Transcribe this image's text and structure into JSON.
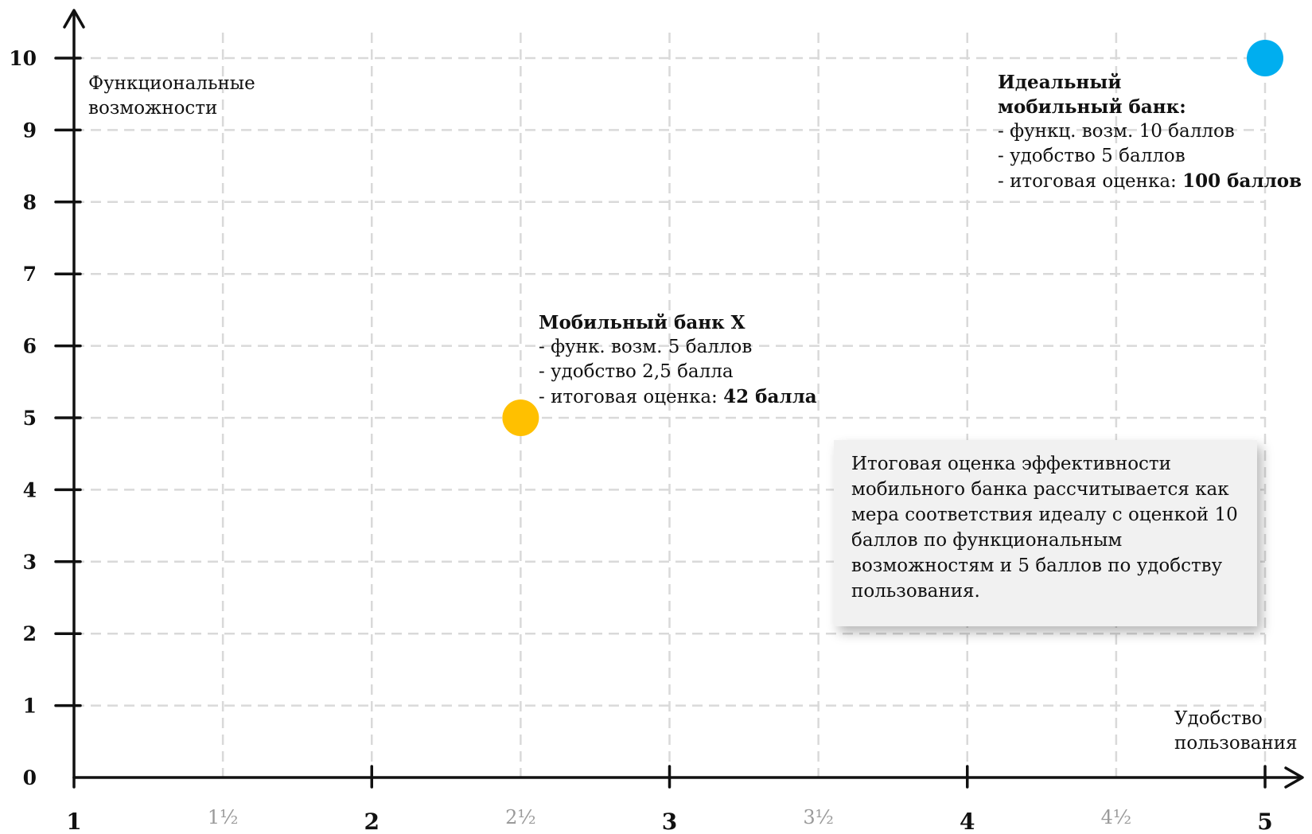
{
  "chart_data": {
    "type": "scatter",
    "xlabel": "Удобство пользования",
    "ylabel": "Функциональные возможности",
    "xlim": [
      1,
      5
    ],
    "ylim": [
      0,
      10
    ],
    "x_ticks": [
      {
        "value": 1,
        "label": "1",
        "major": true
      },
      {
        "value": 1.5,
        "label": "1½",
        "major": false
      },
      {
        "value": 2,
        "label": "2",
        "major": true
      },
      {
        "value": 2.5,
        "label": "2½",
        "major": false
      },
      {
        "value": 3,
        "label": "3",
        "major": true
      },
      {
        "value": 3.5,
        "label": "3½",
        "major": false
      },
      {
        "value": 4,
        "label": "4",
        "major": true
      },
      {
        "value": 4.5,
        "label": "4½",
        "major": false
      },
      {
        "value": 5,
        "label": "5",
        "major": true
      }
    ],
    "y_ticks": [
      {
        "value": 0,
        "label": "0"
      },
      {
        "value": 1,
        "label": "1"
      },
      {
        "value": 2,
        "label": "2"
      },
      {
        "value": 3,
        "label": "3"
      },
      {
        "value": 4,
        "label": "4"
      },
      {
        "value": 5,
        "label": "5"
      },
      {
        "value": 6,
        "label": "6"
      },
      {
        "value": 7,
        "label": "7"
      },
      {
        "value": 8,
        "label": "8"
      },
      {
        "value": 9,
        "label": "9"
      },
      {
        "value": 10,
        "label": "10"
      }
    ],
    "grid": true,
    "points": [
      {
        "name": "Мобильный банк X",
        "x": 2.5,
        "y": 5,
        "color": "#FFC000"
      },
      {
        "name": "Идеальный мобильный банк:",
        "x": 5,
        "y": 10,
        "color": "#00AEEF"
      }
    ]
  },
  "annotations": {
    "bank_x": {
      "title": "Мобильный банк X",
      "line1": "- функ. возм. 5 баллов",
      "line2": "- удобство 2,5 балла",
      "line3_prefix": "- итоговая оценка: ",
      "line3_value": "42 балла"
    },
    "ideal": {
      "title_line1": "Идеальный",
      "title_line2": "мобильный банк:",
      "line1": "- функц. возм. 10 баллов",
      "line2": "- удобство 5 баллов",
      "line3_prefix": "- итоговая оценка: ",
      "line3_value": "100 баллов"
    }
  },
  "axis_titles": {
    "y_line1": "Функциональные",
    "y_line2": "возможности",
    "x_line1": "Удобство",
    "x_line2": "пользования"
  },
  "note": {
    "text": "Итоговая оценка эффективности мобильного банка рассчитывается как мера соответствия идеалу с оценкой 10 баллов по функциональным возможностям и 5 баллов по удобству пользования."
  },
  "colors": {
    "axis": "#111111",
    "grid": "#d9d9d9",
    "bank_x": "#FFC000",
    "ideal": "#00AEEF",
    "minor_tick_label": "#9a9a9a"
  }
}
